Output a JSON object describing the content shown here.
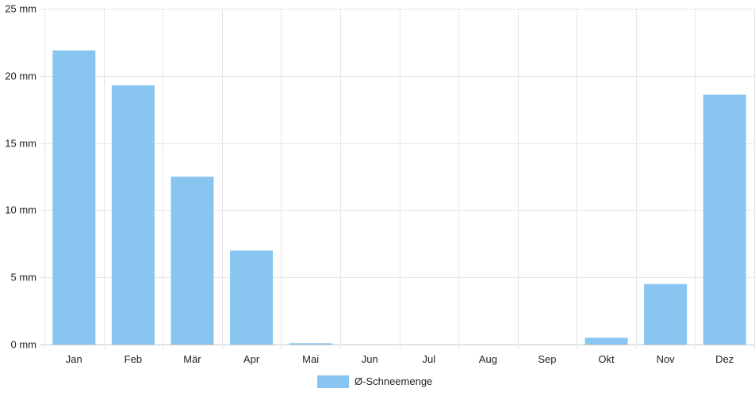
{
  "chart_data": {
    "type": "bar",
    "title": "",
    "xlabel": "",
    "ylabel": "",
    "categories": [
      "Jan",
      "Feb",
      "Mär",
      "Apr",
      "Mai",
      "Jun",
      "Jul",
      "Aug",
      "Sep",
      "Okt",
      "Nov",
      "Dez"
    ],
    "series": [
      {
        "name": "Ø-Schneemenge",
        "values": [
          21.9,
          19.3,
          12.5,
          7.0,
          0.1,
          0,
          0,
          0,
          0,
          0.5,
          4.5,
          18.6
        ],
        "color": "#88c6f1"
      }
    ],
    "ylim": [
      0,
      25
    ],
    "yticks": [
      0,
      5,
      10,
      15,
      20,
      25
    ],
    "ytick_labels": [
      "0 mm",
      "5 mm",
      "10 mm",
      "15 mm",
      "20 mm",
      "25 mm"
    ],
    "grid": true,
    "legend": "bottom-center"
  }
}
